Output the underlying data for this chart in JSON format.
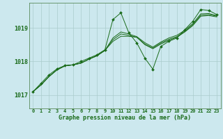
{
  "background_color": "#cce8ee",
  "grid_color": "#aacccc",
  "line_color": "#1a6b1a",
  "title": "Graphe pression niveau de la mer (hPa)",
  "x_ticks": [
    0,
    1,
    2,
    3,
    4,
    5,
    6,
    7,
    8,
    9,
    10,
    11,
    12,
    13,
    14,
    15,
    16,
    17,
    18,
    19,
    20,
    21,
    22,
    23
  ],
  "ylim": [
    1016.6,
    1019.75
  ],
  "yticks": [
    1017,
    1018,
    1019
  ],
  "series_noisy": [
    1017.1,
    1017.35,
    1017.6,
    1017.78,
    1017.88,
    1017.9,
    1018.0,
    1018.1,
    1018.2,
    1018.35,
    1019.25,
    1019.45,
    1018.85,
    1018.55,
    1018.1,
    1017.77,
    1018.45,
    1018.6,
    1018.7,
    1018.95,
    1019.2,
    1019.55,
    1019.52,
    1019.4
  ],
  "series_smooth1": [
    1017.1,
    1017.3,
    1017.55,
    1017.75,
    1017.87,
    1017.9,
    1017.95,
    1018.07,
    1018.17,
    1018.33,
    1018.6,
    1018.75,
    1018.75,
    1018.72,
    1018.5,
    1018.38,
    1018.52,
    1018.63,
    1018.72,
    1018.88,
    1019.07,
    1019.35,
    1019.37,
    1019.33
  ],
  "series_smooth2": [
    1017.1,
    1017.3,
    1017.55,
    1017.75,
    1017.87,
    1017.9,
    1017.95,
    1018.07,
    1018.17,
    1018.33,
    1018.65,
    1018.82,
    1018.78,
    1018.72,
    1018.52,
    1018.4,
    1018.55,
    1018.66,
    1018.74,
    1018.9,
    1019.1,
    1019.38,
    1019.4,
    1019.35
  ],
  "series_smooth3": [
    1017.1,
    1017.3,
    1017.55,
    1017.75,
    1017.87,
    1017.9,
    1017.95,
    1018.07,
    1018.17,
    1018.33,
    1018.7,
    1018.88,
    1018.82,
    1018.74,
    1018.56,
    1018.43,
    1018.58,
    1018.7,
    1018.78,
    1018.93,
    1019.13,
    1019.42,
    1019.43,
    1019.37
  ]
}
